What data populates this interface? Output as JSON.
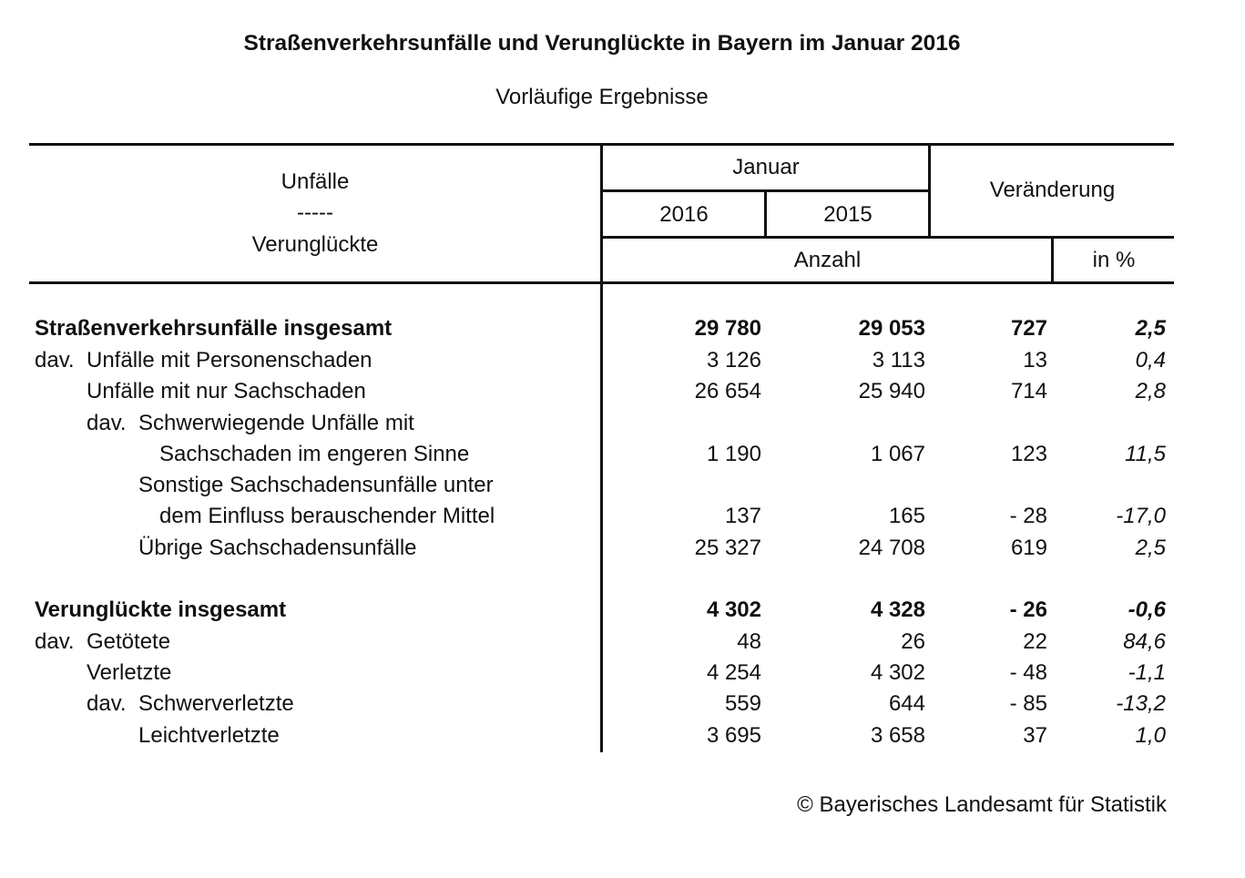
{
  "title": "Straßenverkehrsunfälle und Verunglückte in Bayern im Januar 2016",
  "subtitle": "Vorläufige Ergebnisse",
  "header": {
    "row_label_top": "Unfälle",
    "row_label_sep": "-----",
    "row_label_bottom": "Verunglückte",
    "month": "Januar",
    "year1": "2016",
    "year2": "2015",
    "change": "Veränderung",
    "unit_count": "Anzahl",
    "unit_percent": "in %"
  },
  "rows": [
    {
      "prefix": "",
      "label": "Straßenverkehrsunfälle insgesamt",
      "indent": 0,
      "bold": true,
      "v2016": "29 780",
      "v2015": "29 053",
      "diff": "727",
      "pct": "2,5"
    },
    {
      "prefix": "dav.",
      "label": "Unfälle mit Personenschaden",
      "indent": 0,
      "bold": false,
      "v2016": "3 126",
      "v2015": "3 113",
      "diff": "13",
      "pct": "0,4"
    },
    {
      "prefix": "",
      "label": "Unfälle mit nur Sachschaden",
      "indent": 1,
      "bold": false,
      "v2016": "26 654",
      "v2015": "25 940",
      "diff": "714",
      "pct": "2,8"
    },
    {
      "prefix": "dav.",
      "label": "Schwerwiegende Unfälle mit",
      "indent": 1,
      "bold": false,
      "v2016": "",
      "v2015": "",
      "diff": "",
      "pct": ""
    },
    {
      "prefix": "",
      "label": "Sachschaden im engeren Sinne",
      "indent": 3,
      "bold": false,
      "v2016": "1 190",
      "v2015": "1 067",
      "diff": "123",
      "pct": "11,5"
    },
    {
      "prefix": "",
      "label": "Sonstige Sachschadensunfälle unter",
      "indent": 2,
      "bold": false,
      "v2016": "",
      "v2015": "",
      "diff": "",
      "pct": ""
    },
    {
      "prefix": "",
      "label": "dem Einfluss berauschender Mittel",
      "indent": 3,
      "bold": false,
      "v2016": "137",
      "v2015": "165",
      "diff": "- 28",
      "pct": "-17,0"
    },
    {
      "prefix": "",
      "label": "Übrige Sachschadensunfälle",
      "indent": 2,
      "bold": false,
      "v2016": "25 327",
      "v2015": "24 708",
      "diff": "619",
      "pct": "2,5"
    },
    {
      "prefix": "",
      "label": "Verunglückte insgesamt",
      "indent": 0,
      "bold": true,
      "v2016": "4 302",
      "v2015": "4 328",
      "diff": "- 26",
      "pct": "-0,6"
    },
    {
      "prefix": "dav.",
      "label": "Getötete",
      "indent": 0,
      "bold": false,
      "v2016": "48",
      "v2015": "26",
      "diff": "22",
      "pct": "84,6"
    },
    {
      "prefix": "",
      "label": "Verletzte",
      "indent": 1,
      "bold": false,
      "v2016": "4 254",
      "v2015": "4 302",
      "diff": "- 48",
      "pct": "-1,1"
    },
    {
      "prefix": "dav.",
      "label": "Schwerverletzte",
      "indent": 1,
      "bold": false,
      "v2016": "559",
      "v2015": "644",
      "diff": "- 85",
      "pct": "-13,2"
    },
    {
      "prefix": "",
      "label": "Leichtverletzte",
      "indent": 2,
      "bold": false,
      "v2016": "3 695",
      "v2015": "3 658",
      "diff": "37",
      "pct": "1,0"
    }
  ],
  "footer": "© Bayerisches Landesamt für Statistik"
}
